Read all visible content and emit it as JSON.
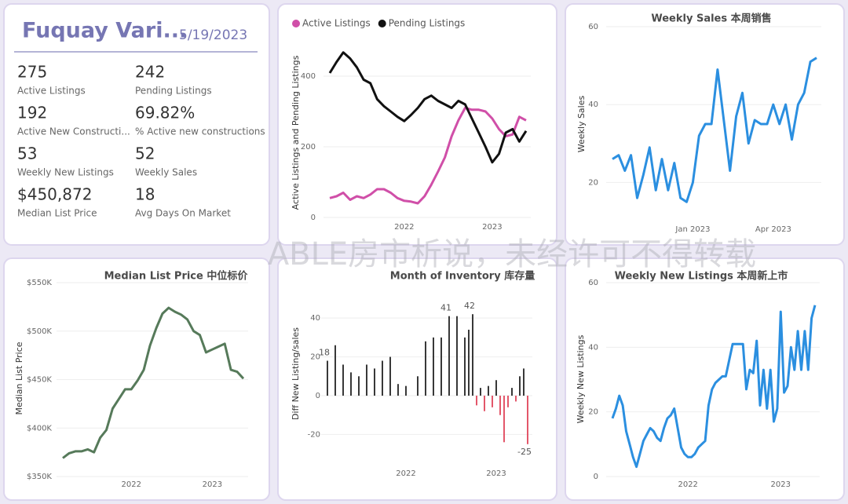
{
  "header": {
    "title": "Fuquay Vari...",
    "date": "5/19/2023"
  },
  "kpis": [
    {
      "value": "275",
      "label": "Active Listings"
    },
    {
      "value": "242",
      "label": "Pending Listings"
    },
    {
      "value": "192",
      "label": "Active New Constructi..."
    },
    {
      "value": "69.82%",
      "label": "% Active new constructions"
    },
    {
      "value": "53",
      "label": "Weekly New Listings"
    },
    {
      "value": "52",
      "label": "Weekly Sales"
    },
    {
      "value": "$450,872",
      "label": "Median List Price"
    },
    {
      "value": "18",
      "label": "Avg Days On Market"
    }
  ],
  "watermark": "ABLE房市析说，未经许可不得转载",
  "chart_data": [
    {
      "type": "line",
      "y_label": "Active Listings and Pending Listings",
      "legend": "top-left",
      "grid": true,
      "categories": [
        null,
        null,
        null,
        null,
        null,
        null,
        null,
        null,
        null,
        null,
        null,
        "2022",
        null,
        null,
        null,
        null,
        null,
        null,
        null,
        null,
        null,
        null,
        null,
        null,
        "2023",
        null,
        null,
        null,
        null,
        null
      ],
      "series": [
        {
          "name": "Active Listings",
          "color": "#d04fa8",
          "values": [
            55,
            60,
            70,
            50,
            60,
            55,
            65,
            80,
            80,
            70,
            55,
            47,
            45,
            40,
            60,
            93,
            130,
            170,
            230,
            275,
            310,
            305,
            305,
            300,
            280,
            250,
            230,
            235,
            285,
            275
          ]
        },
        {
          "name": "Pending Listings",
          "color": "#111111",
          "values": [
            409,
            440,
            467,
            450,
            425,
            390,
            380,
            335,
            315,
            300,
            285,
            273,
            290,
            310,
            335,
            345,
            330,
            320,
            310,
            330,
            320,
            280,
            240,
            200,
            156,
            180,
            240,
            250,
            215,
            245
          ]
        }
      ],
      "ylim": [
        0,
        480
      ],
      "yticks": [
        0,
        200,
        400
      ]
    },
    {
      "type": "line",
      "title": "Weekly Sales 本周销售",
      "y_label": "Weekly Sales",
      "color": "#2b8fe0",
      "grid": true,
      "categories": [
        null,
        null,
        null,
        null,
        null,
        null,
        null,
        null,
        null,
        null,
        null,
        null,
        null,
        "Jan 2023",
        null,
        null,
        null,
        null,
        null,
        null,
        null,
        null,
        null,
        null,
        null,
        null,
        "Apr 2023",
        null,
        null,
        null,
        null,
        null,
        null,
        null
      ],
      "values": [
        26,
        27,
        23,
        27,
        16,
        22,
        29,
        18,
        26,
        18,
        25,
        16,
        15,
        20,
        32,
        35,
        35,
        49,
        36,
        23,
        37,
        43,
        30,
        36,
        35,
        35,
        40,
        35,
        40,
        31,
        40,
        43,
        51,
        52
      ],
      "ylim": [
        10,
        60
      ],
      "yticks": [
        20,
        40,
        60
      ]
    },
    {
      "type": "line",
      "title": "Median List Price  中位标价",
      "y_label": "Median List Price",
      "color": "#567a5a",
      "grid": true,
      "categories": [
        null,
        null,
        null,
        null,
        null,
        null,
        null,
        null,
        null,
        null,
        null,
        "2022",
        null,
        null,
        null,
        null,
        null,
        null,
        null,
        null,
        null,
        null,
        null,
        null,
        "2023",
        null,
        null,
        null,
        null,
        null
      ],
      "values": [
        369000,
        374000,
        376000,
        376000,
        378000,
        375000,
        390000,
        398000,
        420000,
        430000,
        440000,
        440000,
        449000,
        460000,
        485000,
        503000,
        518000,
        524000,
        520000,
        517000,
        512000,
        500000,
        496000,
        478000,
        481000,
        484000,
        487000,
        460000,
        458000,
        451000
      ],
      "ylim": [
        350000,
        550000
      ],
      "yticks": [
        {
          "value": 350000,
          "label": "$350K"
        },
        {
          "value": 400000,
          "label": "$400K"
        },
        {
          "value": 450000,
          "label": "$450K"
        },
        {
          "value": 500000,
          "label": "$500K"
        },
        {
          "value": 550000,
          "label": "$550K"
        }
      ]
    },
    {
      "type": "bar",
      "title": "Month of Inventory 库存量",
      "y_label": "Diff New Listing/sales",
      "color": "#222222",
      "negative_color": "#e0455a",
      "grid": true,
      "categories": [
        null,
        null,
        null,
        null,
        null,
        null,
        null,
        null,
        null,
        null,
        null,
        null,
        null,
        null,
        null,
        null,
        null,
        null,
        null,
        null,
        "2022",
        null,
        null,
        null,
        null,
        null,
        null,
        null,
        null,
        null,
        null,
        null,
        null,
        null,
        null,
        null,
        null,
        null,
        null,
        null,
        null,
        null,
        null,
        "2023",
        null,
        null,
        null,
        null,
        null,
        null,
        null,
        null
      ],
      "values": [
        18,
        null,
        26,
        null,
        16,
        null,
        12,
        null,
        10,
        null,
        16,
        null,
        14,
        null,
        18,
        null,
        20,
        null,
        6,
        null,
        5,
        null,
        null,
        10,
        null,
        28,
        null,
        30,
        null,
        30,
        null,
        41,
        null,
        41,
        null,
        30,
        34,
        42,
        -5,
        4,
        -8,
        5,
        -6,
        8,
        -10,
        -24,
        -6,
        4,
        -3,
        10,
        14,
        -25
      ],
      "value_labels": [
        "18",
        null,
        null,
        null,
        null,
        null,
        null,
        null,
        null,
        null,
        null,
        null,
        null,
        null,
        null,
        null,
        null,
        null,
        null,
        null,
        null,
        null,
        null,
        null,
        null,
        null,
        null,
        null,
        null,
        null,
        null,
        "41",
        null,
        null,
        null,
        null,
        null,
        "42",
        null,
        null,
        null,
        null,
        null,
        null,
        null,
        null,
        null,
        null,
        null,
        null,
        null,
        "-25"
      ],
      "ylim": [
        -38,
        48
      ],
      "yticks": [
        -20,
        0,
        20,
        40
      ]
    },
    {
      "type": "line",
      "title": "Weekly New Listings  本周新上市",
      "y_label": "Weekly New Listings",
      "color": "#2b8fe0",
      "grid": true,
      "categories": [
        null,
        null,
        null,
        null,
        null,
        null,
        null,
        null,
        null,
        null,
        null,
        null,
        null,
        null,
        null,
        null,
        null,
        null,
        null,
        null,
        null,
        null,
        "2022",
        null,
        null,
        null,
        null,
        null,
        null,
        null,
        null,
        null,
        null,
        null,
        null,
        null,
        null,
        null,
        null,
        null,
        null,
        null,
        null,
        null,
        null,
        null,
        null,
        null,
        null,
        "2023",
        null,
        null,
        null,
        null,
        null,
        null,
        null,
        null,
        null,
        null
      ],
      "values": [
        18,
        21,
        25,
        22,
        14,
        10,
        6,
        3,
        7,
        11,
        13,
        15,
        14,
        12,
        11,
        15,
        18,
        19,
        21,
        15,
        9,
        7,
        6,
        6,
        7,
        9,
        10,
        11,
        22,
        27,
        29,
        30,
        31,
        31,
        36,
        41,
        41,
        41,
        41,
        27,
        33,
        32,
        42,
        22,
        33,
        21,
        33,
        17,
        21,
        51,
        26,
        28,
        40,
        33,
        45,
        33,
        45,
        33,
        49,
        53
      ],
      "ylim": [
        0,
        60
      ],
      "yticks": [
        0,
        20,
        40,
        60
      ]
    }
  ]
}
